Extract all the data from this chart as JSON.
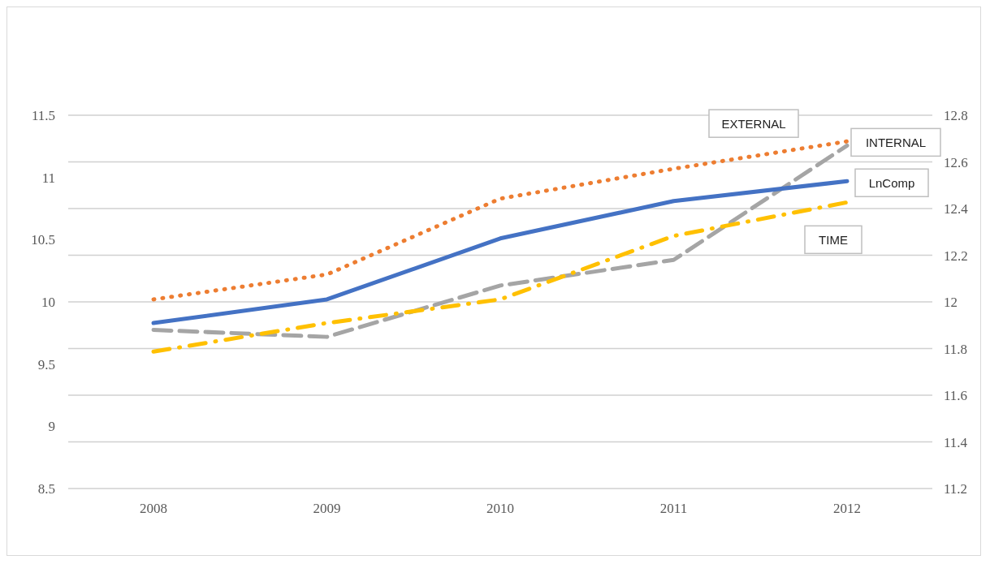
{
  "chart_data": {
    "type": "line",
    "categories": [
      "2008",
      "2009",
      "2010",
      "2011",
      "2012"
    ],
    "series": [
      {
        "name": "EXTERNAL",
        "color": "#ed7d31",
        "line_style": "dotted",
        "values": [
          10.02,
          10.22,
          10.83,
          11.07,
          11.29
        ]
      },
      {
        "name": "INTERNAL",
        "color": "#a5a5a5",
        "line_style": "dashed",
        "axis": "y2",
        "values": [
          11.88,
          11.85,
          12.07,
          12.18,
          12.67
        ]
      },
      {
        "name": "LnComp",
        "color": "#4472c4",
        "line_style": "solid",
        "values": [
          9.83,
          10.02,
          10.51,
          10.81,
          10.97
        ]
      },
      {
        "name": "TIME",
        "color": "#ffc000",
        "line_style": "dashed",
        "values": [
          9.6,
          9.83,
          10.02,
          10.53,
          10.8
        ]
      }
    ],
    "ylim": [
      8.5,
      11.5
    ],
    "yticks": [
      8.5,
      9,
      9.5,
      10,
      10.5,
      11,
      11.5
    ],
    "y2lim": [
      11.2,
      12.8
    ],
    "y2ticks": [
      11.2,
      11.4,
      11.6,
      11.8,
      12,
      12.2,
      12.4,
      12.6,
      12.8
    ],
    "grid": "y",
    "legend": false,
    "marker": "none"
  }
}
